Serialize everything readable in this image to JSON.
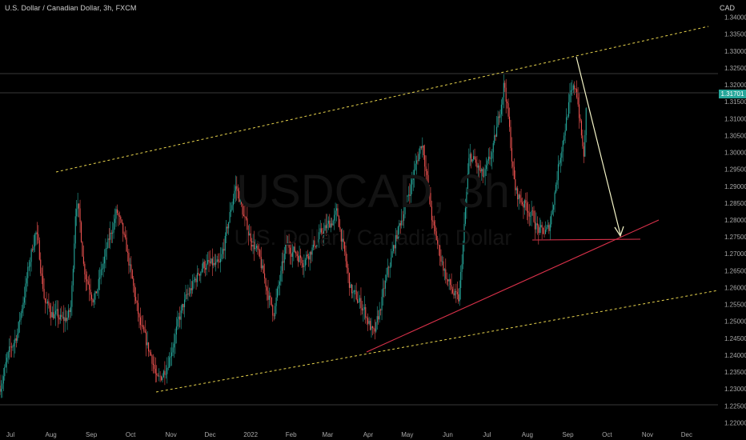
{
  "header": {
    "title": "U.S. Dollar / Canadian Dollar, 3h, FXCM",
    "currency": "CAD"
  },
  "watermark": {
    "ticker": "USDCAD, 3h",
    "name": "U.S. Dollar / Canadian Dollar"
  },
  "price_badge": "1.31701",
  "colors": {
    "up": "#26a69a",
    "down": "#ef5350",
    "background": "#000000",
    "channel": "#e8d44d",
    "support": "#d9314a",
    "arrow": "#f5f5c8"
  },
  "chart_data": {
    "type": "candlestick",
    "title": "U.S. Dollar / Canadian Dollar, 3h, FXCM",
    "y_axis_side": "right",
    "y_range": [
      1.2175,
      1.3425
    ],
    "y_ticks": [
      "1.34000",
      "1.33500",
      "1.33000",
      "1.32500",
      "1.32000",
      "1.31500",
      "1.31000",
      "1.30500",
      "1.30000",
      "1.29500",
      "1.29000",
      "1.28500",
      "1.28000",
      "1.27500",
      "1.27000",
      "1.26500",
      "1.26000",
      "1.25500",
      "1.25000",
      "1.24500",
      "1.24000",
      "1.23500",
      "1.23000",
      "1.22500",
      "1.22000"
    ],
    "x_ticks": [
      "Jul",
      "Aug",
      "Sep",
      "Oct",
      "Nov",
      "Dec",
      "2022",
      "Feb",
      "Mar",
      "Apr",
      "May",
      "Jun",
      "Jul",
      "Aug",
      "Sep",
      "Oct",
      "Nov",
      "Dec"
    ],
    "x_range": [
      "2021-06-23",
      "2022-12-25"
    ],
    "last_price": "1.31701",
    "price_path": [
      [
        "2021-06-23",
        1.231
      ],
      [
        "2021-06-29",
        1.24
      ],
      [
        "2021-07-06",
        1.247
      ],
      [
        "2021-07-14",
        1.265
      ],
      [
        "2021-07-20",
        1.278
      ],
      [
        "2021-07-27",
        1.255
      ],
      [
        "2021-08-03",
        1.252
      ],
      [
        "2021-08-10",
        1.25
      ],
      [
        "2021-08-16",
        1.253
      ],
      [
        "2021-08-20",
        1.29
      ],
      [
        "2021-08-26",
        1.265
      ],
      [
        "2021-09-03",
        1.256
      ],
      [
        "2021-09-10",
        1.268
      ],
      [
        "2021-09-20",
        1.283
      ],
      [
        "2021-09-28",
        1.27
      ],
      [
        "2021-10-08",
        1.248
      ],
      [
        "2021-10-18",
        1.238
      ],
      [
        "2021-10-21",
        1.231
      ],
      [
        "2021-10-29",
        1.238
      ],
      [
        "2021-11-10",
        1.255
      ],
      [
        "2021-11-25",
        1.267
      ],
      [
        "2021-12-08",
        1.266
      ],
      [
        "2021-12-20",
        1.291
      ],
      [
        "2021-12-28",
        1.278
      ],
      [
        "2022-01-06",
        1.27
      ],
      [
        "2022-01-18",
        1.252
      ],
      [
        "2022-01-28",
        1.273
      ],
      [
        "2022-02-10",
        1.268
      ],
      [
        "2022-02-22",
        1.275
      ],
      [
        "2022-03-08",
        1.282
      ],
      [
        "2022-03-18",
        1.259
      ],
      [
        "2022-03-28",
        1.254
      ],
      [
        "2022-04-05",
        1.245
      ],
      [
        "2022-04-14",
        1.262
      ],
      [
        "2022-04-22",
        1.275
      ],
      [
        "2022-05-03",
        1.29
      ],
      [
        "2022-05-12",
        1.304
      ],
      [
        "2022-05-20",
        1.278
      ],
      [
        "2022-05-31",
        1.262
      ],
      [
        "2022-06-09",
        1.255
      ],
      [
        "2022-06-17",
        1.3
      ],
      [
        "2022-06-28",
        1.292
      ],
      [
        "2022-07-06",
        1.302
      ],
      [
        "2022-07-14",
        1.322
      ],
      [
        "2022-07-22",
        1.288
      ],
      [
        "2022-08-02",
        1.283
      ],
      [
        "2022-08-10",
        1.276
      ],
      [
        "2022-08-17",
        1.277
      ],
      [
        "2022-08-25",
        1.298
      ],
      [
        "2022-09-02",
        1.316
      ],
      [
        "2022-09-07",
        1.32
      ],
      [
        "2022-09-13",
        1.296
      ],
      [
        "2022-09-15",
        1.317
      ]
    ]
  }
}
